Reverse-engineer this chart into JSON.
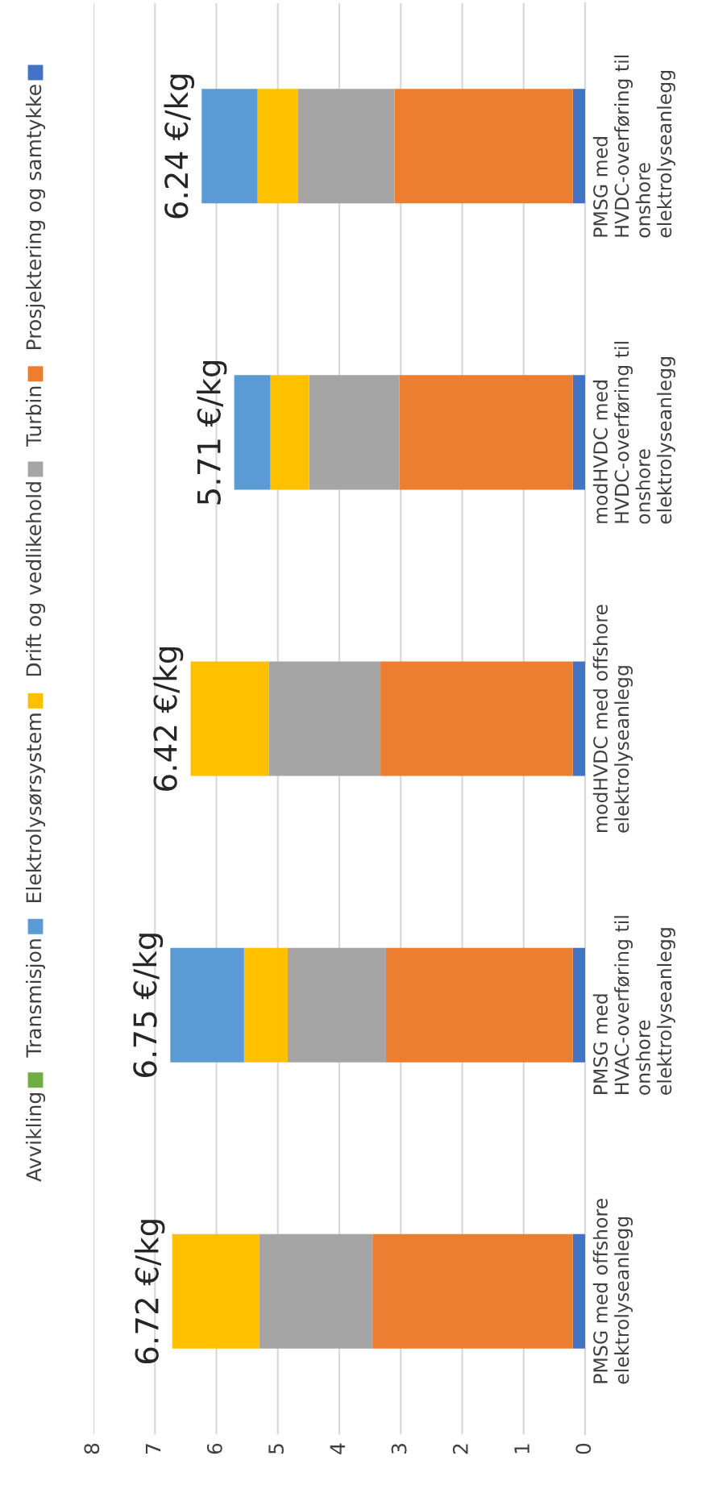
{
  "chart_data": {
    "type": "bar",
    "orientation": "horizontal",
    "stacked": true,
    "categories": [
      "PMSG med HVDC-overføring til onshore elektrolyseanlegg",
      "modHVDC med HVDC-overføring til onshore elektrolyseanlegg",
      "modHVDC med offshore elektrolyseanlegg",
      "PMSG med HVAC-overføring til onshore elektrolyseanlegg",
      "PMSG med offshore elektrolyseanlegg"
    ],
    "series": [
      {
        "name": "Prosjektering og samtykke",
        "color": "#4472c4",
        "values": [
          0.2,
          0.2,
          0.2,
          0.2,
          0.2
        ]
      },
      {
        "name": "Turbin",
        "color": "#ed7d31",
        "values": [
          2.9,
          2.82,
          3.13,
          3.04,
          3.26
        ]
      },
      {
        "name": "Drift og vedlikehold",
        "color": "#a5a5a5",
        "values": [
          1.57,
          1.47,
          1.82,
          1.6,
          1.84
        ]
      },
      {
        "name": "Elektrolysørsystem",
        "color": "#ffc000",
        "values": [
          0.66,
          0.63,
          1.27,
          0.71,
          1.42
        ]
      },
      {
        "name": "Transmisjon",
        "color": "#5b9bd5",
        "values": [
          0.91,
          0.59,
          0,
          1.2,
          0
        ]
      },
      {
        "name": "Avvikling",
        "color": "#70ad47",
        "values": [
          0,
          0,
          0,
          0,
          0
        ]
      }
    ],
    "totals": [
      "6.24 €/kg",
      "5.71 €/kg",
      "6.42 €/kg",
      "6.75 €/kg",
      "6.72 €/kg"
    ],
    "xlim": [
      8,
      0
    ],
    "xticks": [
      0,
      1,
      2,
      3,
      4,
      5,
      6,
      7,
      8
    ],
    "grid": "x",
    "legend": "left"
  }
}
